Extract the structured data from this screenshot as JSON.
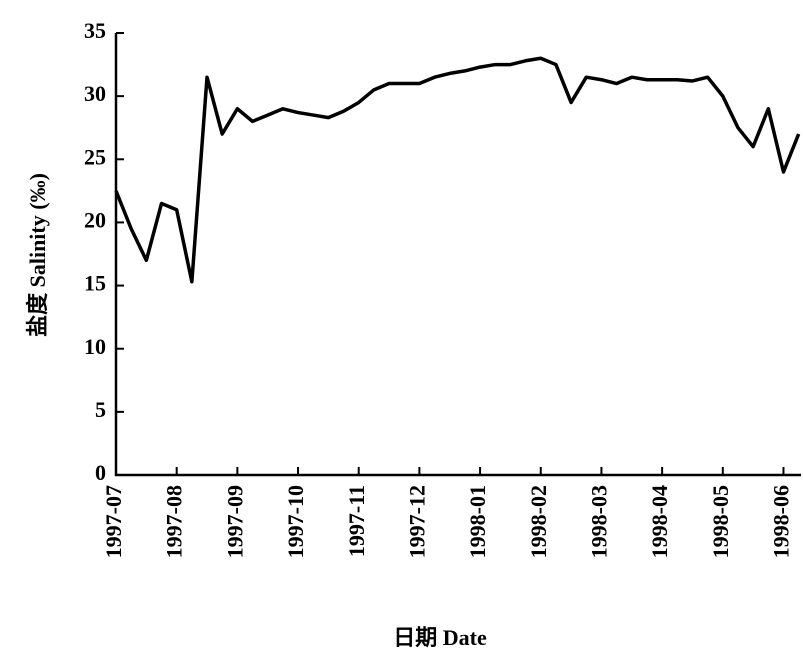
{
  "chart_data": {
    "type": "line",
    "xlabel": "日期 Date",
    "ylabel": "盐度 Salinity (‰)",
    "categories": [
      "1997-07",
      null,
      null,
      null,
      "1997-08",
      null,
      null,
      null,
      "1997-09",
      null,
      null,
      null,
      "1997-10",
      null,
      null,
      null,
      "1997-11",
      null,
      null,
      null,
      "1997-12",
      null,
      null,
      null,
      "1998-01",
      null,
      null,
      null,
      "1998-02",
      null,
      null,
      null,
      "1998-03",
      null,
      null,
      null,
      "1998-04",
      null,
      null,
      null,
      "1998-05",
      null,
      null,
      null,
      "1998-06",
      null
    ],
    "series": [
      {
        "name": "Salinity",
        "color": "#000000",
        "values": [
          22.5,
          19.5,
          17,
          21.5,
          21,
          15.3,
          31.5,
          27,
          29,
          28,
          28.5,
          29,
          28.7,
          28.5,
          28.3,
          28.8,
          29.5,
          30.5,
          31,
          31,
          31,
          31.5,
          31.8,
          32,
          32.3,
          32.5,
          32.5,
          32.8,
          33,
          32.5,
          29.5,
          31.5,
          31.3,
          31,
          31.5,
          31.3,
          31.3,
          31.3,
          31.2,
          31.5,
          30,
          27.5,
          26,
          29,
          24,
          27
        ]
      }
    ],
    "ylim": [
      0,
      35
    ],
    "yticks": [
      0,
      5,
      10,
      15,
      20,
      25,
      30,
      35
    ]
  }
}
